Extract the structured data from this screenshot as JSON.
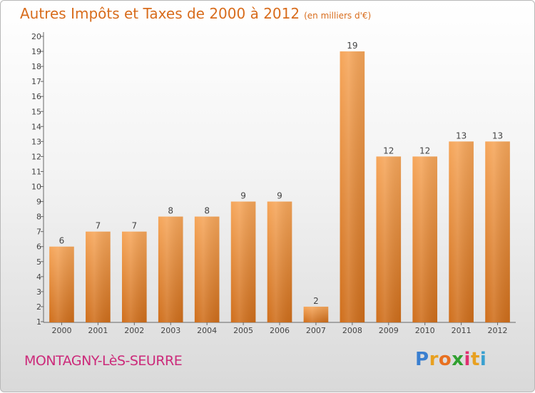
{
  "header": {
    "title": "Autres Impôts et Taxes de 2000 à 2012",
    "unit": "(en milliers d'€)"
  },
  "footer": {
    "town": "MONTAGNY-LèS-SEURRE",
    "logo_letters": [
      "P",
      "r",
      "o",
      "x",
      "i",
      "t",
      "i"
    ],
    "logo_colors": [
      "#3a7fd0",
      "#e8a020",
      "#e87020",
      "#30a030",
      "#e03070",
      "#e8a020",
      "#3aa0d0"
    ]
  },
  "colors": {
    "title": "#d86c1c",
    "town": "#cc2a7a",
    "bar_top": "#f6a65a",
    "bar_bottom": "#cf6e1b"
  },
  "chart_data": {
    "type": "bar",
    "categories": [
      "2000",
      "2001",
      "2002",
      "2003",
      "2004",
      "2005",
      "2006",
      "2007",
      "2008",
      "2009",
      "2010",
      "2011",
      "2012"
    ],
    "values": [
      6,
      7,
      7,
      8,
      8,
      9,
      9,
      2,
      19,
      12,
      12,
      13,
      13
    ],
    "ylim": [
      1,
      20
    ],
    "yticks": [
      1,
      2,
      3,
      4,
      5,
      6,
      7,
      8,
      9,
      10,
      11,
      12,
      13,
      14,
      15,
      16,
      17,
      18,
      19,
      20
    ],
    "grid": false,
    "legend": "none"
  }
}
